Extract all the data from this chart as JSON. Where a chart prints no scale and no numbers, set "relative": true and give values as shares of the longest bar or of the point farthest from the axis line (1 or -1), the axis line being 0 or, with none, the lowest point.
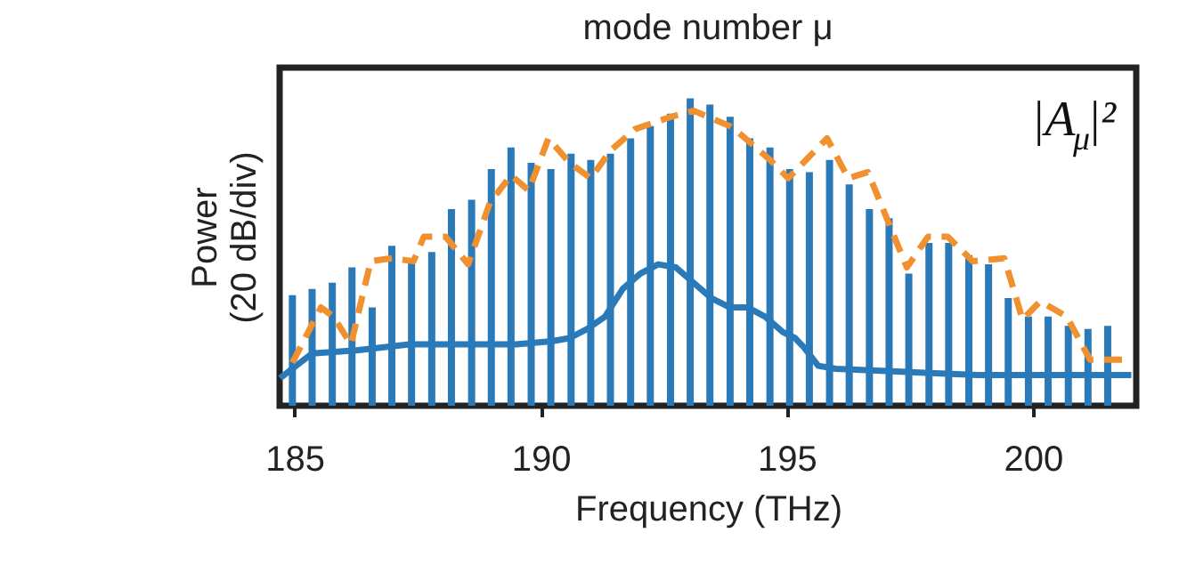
{
  "chart_data": {
    "type": "line",
    "relative": true,
    "x2label": "mode number μ",
    "xlabel": "Frequency (THz)",
    "ylabel": "Power (20 dB/div)",
    "annotations": [
      "|A$_{μ}$|²"
    ],
    "xlim": [
      184.7,
      202.1
    ],
    "xticks": [
      185,
      190,
      195,
      200
    ],
    "grid": false,
    "legend": false,
    "series": [
      {
        "type": "bar",
        "color": "#2a7ab9",
        "x": [
          184.96,
          185.36,
          185.77,
          186.17,
          186.58,
          186.98,
          187.38,
          187.79,
          188.19,
          188.6,
          189.0,
          189.4,
          189.81,
          190.21,
          190.62,
          191.02,
          191.42,
          191.83,
          192.23,
          192.64,
          193.04,
          193.44,
          193.85,
          194.25,
          194.66,
          195.06,
          195.46,
          195.87,
          196.27,
          196.68,
          197.08,
          197.48,
          197.89,
          198.29,
          198.7,
          199.1,
          199.5,
          199.91,
          200.31,
          200.72,
          201.12,
          201.52
        ],
        "values": [
          0.36,
          0.38,
          0.4,
          0.45,
          0.32,
          0.52,
          0.48,
          0.5,
          0.64,
          0.67,
          0.77,
          0.84,
          0.79,
          0.77,
          0.82,
          0.8,
          0.82,
          0.87,
          0.91,
          0.95,
          1.0,
          0.98,
          0.94,
          0.87,
          0.84,
          0.77,
          0.76,
          0.8,
          0.72,
          0.64,
          0.61,
          0.43,
          0.53,
          0.53,
          0.49,
          0.46,
          0.35,
          0.29,
          0.29,
          0.26,
          0.25,
          0.26
        ]
      },
      {
        "color": "#2a7ab9",
        "line_style": "solid",
        "x": [
          184.71,
          185.36,
          186.26,
          187.34,
          188.43,
          189.51,
          190.23,
          190.59,
          190.95,
          191.31,
          191.67,
          192.03,
          192.39,
          192.75,
          193.11,
          193.47,
          193.84,
          194.2,
          194.56,
          194.92,
          195.17,
          195.35,
          195.64,
          196.0,
          198.88,
          202.0
        ],
        "values": [
          0.09,
          0.17,
          0.18,
          0.2,
          0.2,
          0.2,
          0.21,
          0.22,
          0.25,
          0.29,
          0.38,
          0.43,
          0.46,
          0.45,
          0.4,
          0.35,
          0.32,
          0.32,
          0.29,
          0.24,
          0.22,
          0.19,
          0.13,
          0.12,
          0.1,
          0.1
        ]
      },
      {
        "color": "#f0902e",
        "line_style": "dashed",
        "x": [
          184.96,
          185.54,
          185.79,
          186.15,
          186.55,
          186.98,
          187.42,
          187.63,
          188.07,
          188.53,
          188.97,
          189.4,
          189.76,
          190.16,
          190.59,
          191.02,
          191.42,
          191.92,
          192.65,
          193.11,
          193.84,
          193.94,
          194.66,
          195.03,
          195.82,
          196.25,
          196.65,
          197.44,
          197.87,
          198.27,
          198.78,
          199.42,
          199.79,
          200.15,
          200.69,
          201.16,
          201.88
        ],
        "values": [
          0.14,
          0.32,
          0.29,
          0.2,
          0.47,
          0.48,
          0.47,
          0.55,
          0.55,
          0.46,
          0.66,
          0.75,
          0.7,
          0.87,
          0.79,
          0.74,
          0.83,
          0.9,
          0.94,
          0.96,
          0.91,
          0.9,
          0.8,
          0.74,
          0.87,
          0.74,
          0.76,
          0.45,
          0.55,
          0.55,
          0.47,
          0.48,
          0.28,
          0.34,
          0.29,
          0.15,
          0.15
        ]
      }
    ]
  }
}
